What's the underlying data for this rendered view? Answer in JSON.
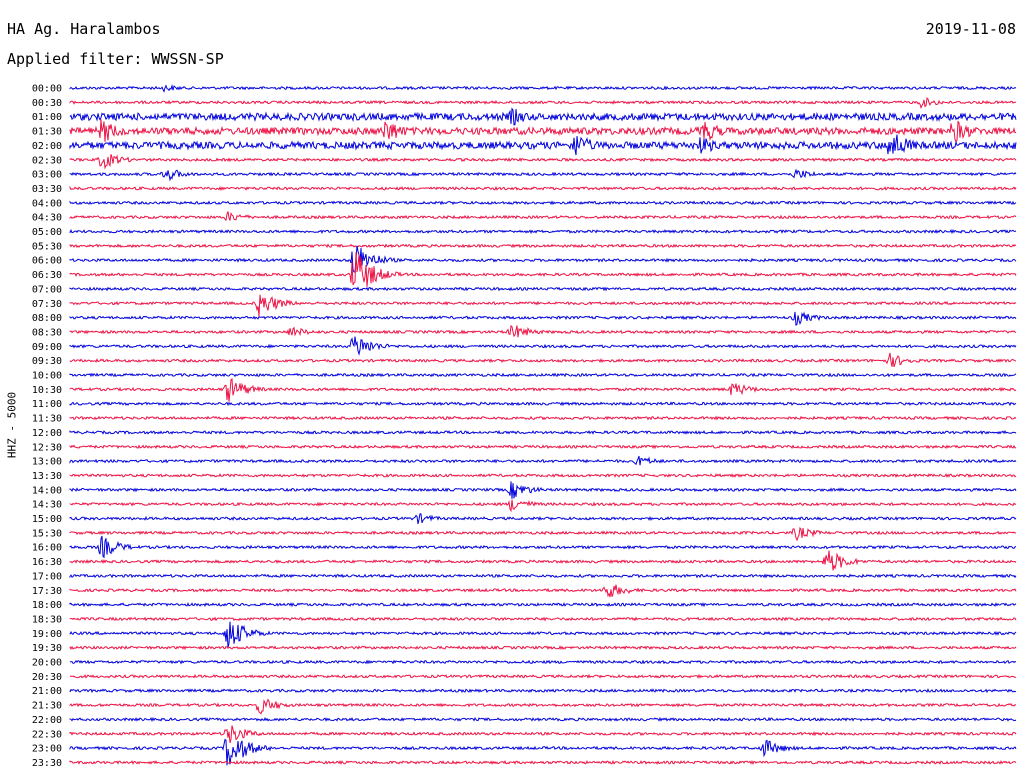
{
  "header": {
    "station": "HA Ag. Haralambos",
    "filter": "Applied filter: WWSSN-SP",
    "date": "2019-11-08"
  },
  "colors": {
    "odd_trace": "#0000dd",
    "even_trace": "#ee1144"
  },
  "chart_data": {
    "type": "line",
    "title": "HA Ag. Haralambos",
    "subtitle": "Applied filter: WWSSN-SP",
    "date": "2019-11-08",
    "ylabel": "HHZ - 5000",
    "trace_labels": [
      "00:00",
      "00:30",
      "01:00",
      "01:30",
      "02:00",
      "02:30",
      "03:00",
      "03:30",
      "04:00",
      "04:30",
      "05:00",
      "05:30",
      "06:00",
      "06:30",
      "07:00",
      "07:30",
      "08:00",
      "08:30",
      "09:00",
      "09:30",
      "10:00",
      "10:30",
      "11:00",
      "11:30",
      "12:00",
      "12:30",
      "13:00",
      "13:30",
      "14:00",
      "14:30",
      "15:00",
      "15:30",
      "16:00",
      "16:30",
      "17:00",
      "17:30",
      "18:00",
      "18:30",
      "19:00",
      "19:30",
      "20:00",
      "20:30",
      "21:00",
      "21:30",
      "22:00",
      "22:30",
      "23:00",
      "23:30"
    ],
    "trace_colors": [
      "blue",
      "red"
    ],
    "events": [
      {
        "trace": "00:00",
        "minute": 3,
        "amp": 4
      },
      {
        "trace": "00:30",
        "minute": 27,
        "amp": 6
      },
      {
        "trace": "01:00",
        "minute": 14,
        "amp": 10
      },
      {
        "trace": "01:30",
        "minute": 1,
        "amp": 14
      },
      {
        "trace": "01:30",
        "minute": 10,
        "amp": 14
      },
      {
        "trace": "01:30",
        "minute": 20,
        "amp": 14
      },
      {
        "trace": "01:30",
        "minute": 28,
        "amp": 14
      },
      {
        "trace": "02:00",
        "minute": 16,
        "amp": 14
      },
      {
        "trace": "02:00",
        "minute": 20,
        "amp": 10
      },
      {
        "trace": "02:00",
        "minute": 26,
        "amp": 18
      },
      {
        "trace": "02:30",
        "minute": 1,
        "amp": 10
      },
      {
        "trace": "03:00",
        "minute": 3,
        "amp": 8
      },
      {
        "trace": "03:00",
        "minute": 23,
        "amp": 6
      },
      {
        "trace": "04:30",
        "minute": 5,
        "amp": 6
      },
      {
        "trace": "06:00",
        "minute": 9,
        "amp": 20
      },
      {
        "trace": "06:30",
        "minute": 9,
        "amp": 28
      },
      {
        "trace": "07:30",
        "minute": 6,
        "amp": 14
      },
      {
        "trace": "08:00",
        "minute": 23,
        "amp": 8
      },
      {
        "trace": "08:30",
        "minute": 7,
        "amp": 6
      },
      {
        "trace": "08:30",
        "minute": 14,
        "amp": 9
      },
      {
        "trace": "09:00",
        "minute": 9,
        "amp": 14
      },
      {
        "trace": "09:30",
        "minute": 26,
        "amp": 8
      },
      {
        "trace": "10:30",
        "minute": 5,
        "amp": 14
      },
      {
        "trace": "10:30",
        "minute": 21,
        "amp": 8
      },
      {
        "trace": "13:00",
        "minute": 18,
        "amp": 6
      },
      {
        "trace": "14:00",
        "minute": 14,
        "amp": 10
      },
      {
        "trace": "14:30",
        "minute": 14,
        "amp": 8
      },
      {
        "trace": "15:00",
        "minute": 11,
        "amp": 6
      },
      {
        "trace": "15:30",
        "minute": 23,
        "amp": 8
      },
      {
        "trace": "16:00",
        "minute": 1,
        "amp": 12
      },
      {
        "trace": "16:30",
        "minute": 24,
        "amp": 14
      },
      {
        "trace": "17:30",
        "minute": 17,
        "amp": 10
      },
      {
        "trace": "19:00",
        "minute": 5,
        "amp": 18
      },
      {
        "trace": "21:30",
        "minute": 6,
        "amp": 10
      },
      {
        "trace": "22:30",
        "minute": 5,
        "amp": 12
      },
      {
        "trace": "23:00",
        "minute": 5,
        "amp": 22
      },
      {
        "trace": "23:00",
        "minute": 22,
        "amp": 10
      }
    ]
  }
}
